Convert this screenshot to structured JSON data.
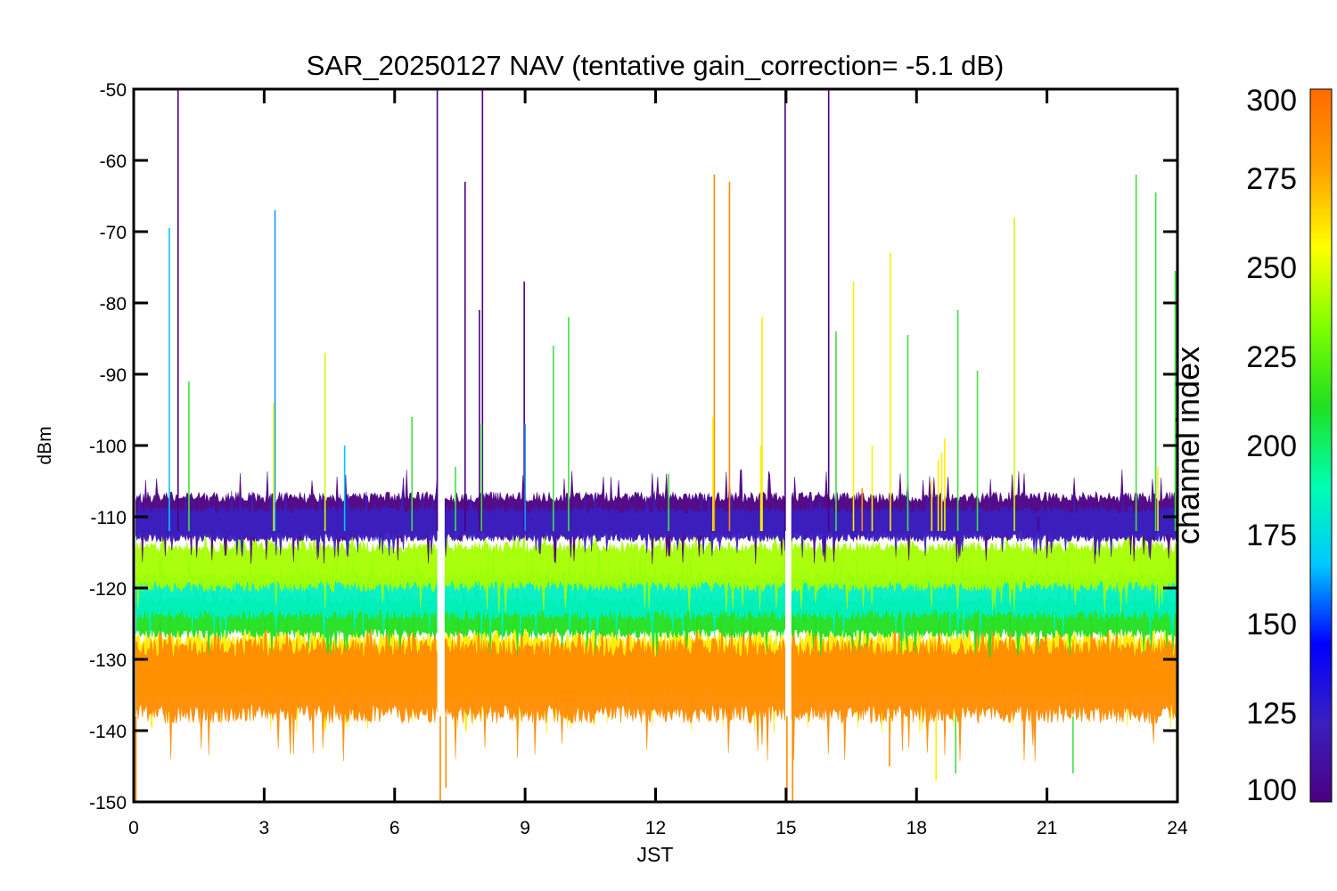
{
  "chart_data": {
    "type": "line",
    "title": "SAR_20250127 NAV (tentative gain_correction= -5.1 dB)",
    "xlabel": "JST",
    "ylabel": "dBm",
    "xlim": [
      0,
      24
    ],
    "ylim": [
      -150,
      -50
    ],
    "x_ticks": [
      "0",
      "3",
      "6",
      "9",
      "12",
      "15",
      "18",
      "21",
      "24"
    ],
    "x_tick_values": [
      0,
      3,
      6,
      9,
      12,
      15,
      18,
      21,
      24
    ],
    "y_ticks": [
      "-50",
      "-60",
      "-70",
      "-80",
      "-90",
      "-100",
      "-110",
      "-120",
      "-130",
      "-140",
      "-150"
    ],
    "y_tick_values": [
      -50,
      -60,
      -70,
      -80,
      -90,
      -100,
      -110,
      -120,
      -130,
      -140,
      -150
    ],
    "grid": false,
    "data_gaps_hours": [
      [
        7.0,
        7.15
      ],
      [
        15.0,
        15.12
      ]
    ],
    "noise_bands": [
      {
        "channel_range": [
          100,
          125
        ],
        "center_dBm": -110,
        "spread_dBm": 3.5,
        "color": "#4b0082"
      },
      {
        "channel_range": [
          125,
          150
        ],
        "center_dBm": -111,
        "spread_dBm": 2.5,
        "color": "#3a1fbf"
      },
      {
        "channel_range": [
          250,
          275
        ],
        "center_dBm": -117,
        "spread_dBm": 3.5,
        "color": "#a6ff00"
      },
      {
        "channel_range": [
          175,
          200
        ],
        "center_dBm": -121,
        "spread_dBm": 3.5,
        "color": "#00f0c0"
      },
      {
        "channel_range": [
          225,
          250
        ],
        "center_dBm": -124,
        "spread_dBm": 3.0,
        "color": "#20e020"
      },
      {
        "channel_range": [
          275,
          290
        ],
        "center_dBm": -131,
        "spread_dBm": 5.0,
        "color": "#ffee00"
      },
      {
        "channel_range": [
          290,
          300
        ],
        "center_dBm": -133,
        "spread_dBm": 6.0,
        "color": "#ff8c00"
      }
    ],
    "spikes": [
      {
        "x": 0.05,
        "y": -150,
        "color": "#ff8c00"
      },
      {
        "x": 0.82,
        "y": -69.5,
        "color": "#00c8ff"
      },
      {
        "x": 1.02,
        "y": -50,
        "color": "#4b0082"
      },
      {
        "x": 1.27,
        "y": -91,
        "color": "#40e040"
      },
      {
        "x": 3.25,
        "y": -67,
        "color": "#1e90ff"
      },
      {
        "x": 3.22,
        "y": -94,
        "color": "#d4ff00"
      },
      {
        "x": 4.4,
        "y": -87,
        "color": "#c8ff00"
      },
      {
        "x": 4.85,
        "y": -100,
        "color": "#00c8ff"
      },
      {
        "x": 6.4,
        "y": -96,
        "color": "#40e040"
      },
      {
        "x": 6.98,
        "y": -50,
        "color": "#4b0082"
      },
      {
        "x": 7.05,
        "y": -150,
        "color": "#ff8c00"
      },
      {
        "x": 7.18,
        "y": -148,
        "color": "#ff8c00"
      },
      {
        "x": 7.4,
        "y": -103,
        "color": "#40e040"
      },
      {
        "x": 7.62,
        "y": -63,
        "color": "#4b0082"
      },
      {
        "x": 7.95,
        "y": -81,
        "color": "#4b0082"
      },
      {
        "x": 8.02,
        "y": -50,
        "color": "#4b0082"
      },
      {
        "x": 8.0,
        "y": -97,
        "color": "#40e040"
      },
      {
        "x": 8.98,
        "y": -77,
        "color": "#4b0082"
      },
      {
        "x": 9.0,
        "y": -97,
        "color": "#1e90ff"
      },
      {
        "x": 9.65,
        "y": -86,
        "color": "#40e040"
      },
      {
        "x": 10.0,
        "y": -82,
        "color": "#40e040"
      },
      {
        "x": 12.3,
        "y": -104,
        "color": "#40e040"
      },
      {
        "x": 13.35,
        "y": -62,
        "color": "#ff8c00"
      },
      {
        "x": 13.32,
        "y": -96,
        "color": "#ffee00"
      },
      {
        "x": 13.7,
        "y": -63,
        "color": "#ff8c00"
      },
      {
        "x": 14.45,
        "y": -82,
        "color": "#ffee00"
      },
      {
        "x": 14.42,
        "y": -100,
        "color": "#ffee00"
      },
      {
        "x": 14.98,
        "y": -50,
        "color": "#4b0082"
      },
      {
        "x": 15.02,
        "y": -150,
        "color": "#ff8c00"
      },
      {
        "x": 15.15,
        "y": -150,
        "color": "#ff8c00"
      },
      {
        "x": 15.98,
        "y": -50,
        "color": "#4b0082"
      },
      {
        "x": 16.15,
        "y": -84,
        "color": "#40e040"
      },
      {
        "x": 16.55,
        "y": -77,
        "color": "#ffee00"
      },
      {
        "x": 16.75,
        "y": -106,
        "color": "#ff8c00"
      },
      {
        "x": 16.98,
        "y": -100,
        "color": "#ffee00"
      },
      {
        "x": 17.4,
        "y": -73,
        "color": "#ffee00"
      },
      {
        "x": 17.38,
        "y": -145,
        "color": "#ff8c00"
      },
      {
        "x": 17.8,
        "y": -84.5,
        "color": "#40e040"
      },
      {
        "x": 18.35,
        "y": -105,
        "color": "#ffee00"
      },
      {
        "x": 18.5,
        "y": -102,
        "color": "#ffee00"
      },
      {
        "x": 18.58,
        "y": -101,
        "color": "#ffee00"
      },
      {
        "x": 18.65,
        "y": -99,
        "color": "#ffee00"
      },
      {
        "x": 18.45,
        "y": -147,
        "color": "#ffee00"
      },
      {
        "x": 18.95,
        "y": -81,
        "color": "#40e040"
      },
      {
        "x": 18.9,
        "y": -146,
        "color": "#40e040"
      },
      {
        "x": 19.4,
        "y": -89.5,
        "color": "#40e040"
      },
      {
        "x": 20.25,
        "y": -68,
        "color": "#c8ff00"
      },
      {
        "x": 20.8,
        "y": -110,
        "color": "#4b0082"
      },
      {
        "x": 21.6,
        "y": -146,
        "color": "#40e040"
      },
      {
        "x": 23.05,
        "y": -62,
        "color": "#40e040"
      },
      {
        "x": 23.5,
        "y": -64.5,
        "color": "#40e040"
      },
      {
        "x": 23.55,
        "y": -103,
        "color": "#ffee00"
      },
      {
        "x": 23.95,
        "y": -75.5,
        "color": "#40e040"
      },
      {
        "x": 23.98,
        "y": -144,
        "color": "#40e040"
      }
    ],
    "colorbar": {
      "label": "channel index",
      "min": 100,
      "max": 300,
      "ticks": [
        "300",
        "275",
        "250",
        "225",
        "200",
        "175",
        "150",
        "125",
        "100"
      ],
      "tick_values": [
        300,
        275,
        250,
        225,
        200,
        175,
        150,
        125,
        100
      ],
      "colors": [
        "#4b0082",
        "#3a1fbf",
        "#0000ff",
        "#00c8ff",
        "#00ffb0",
        "#20e020",
        "#80ff00",
        "#ffff00",
        "#ffa000",
        "#ff6a00"
      ]
    }
  }
}
